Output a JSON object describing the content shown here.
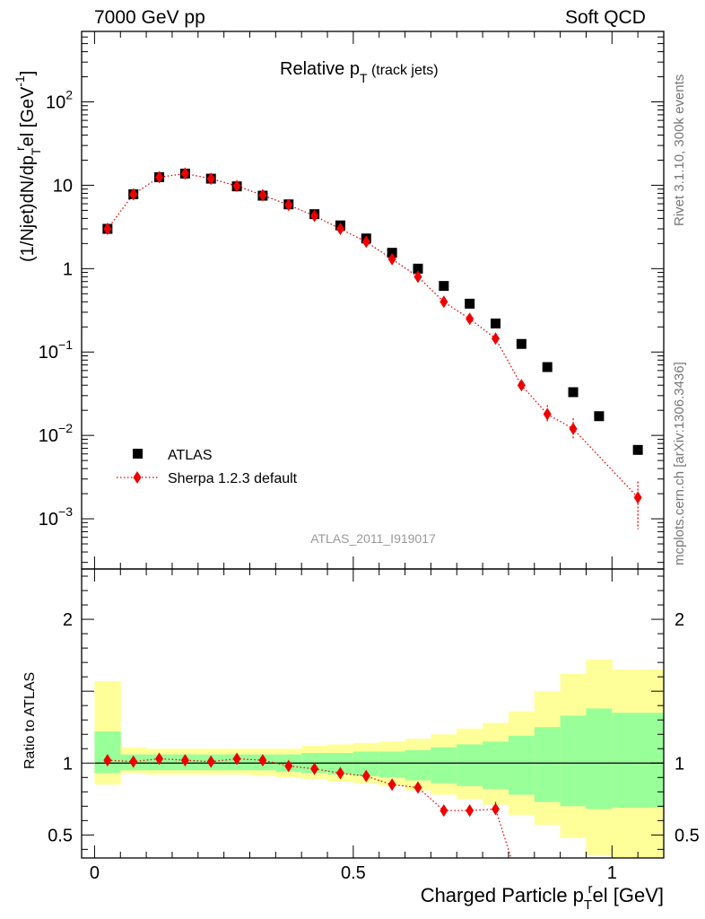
{
  "header": {
    "left": "7000 GeV pp",
    "right": "Soft QCD"
  },
  "side_labels": {
    "rivet": "Rivet 3.1.10,  300k events",
    "mcplots": "mcplots.cern.ch [arXiv:1306.3436]"
  },
  "chart_data": [
    {
      "type": "scatter",
      "title": "Relative p_T (track jets)",
      "title_main": "Relative p",
      "title_sub": "T",
      "title_extra": "(track jets)",
      "ylabel": "(1/Njet)dN/dp_T^rel [GeV^-1]",
      "watermark": "ATLAS_2011_I919017",
      "yscale": "log",
      "xlim": [
        -0.025,
        1.1
      ],
      "ylim": [
        0.00025,
        700
      ],
      "ytick_labels": [
        {
          "v": 0.001,
          "base": "10",
          "exp": "−3"
        },
        {
          "v": 0.01,
          "base": "10",
          "exp": "−2"
        },
        {
          "v": 0.1,
          "base": "10",
          "exp": "−1"
        },
        {
          "v": 1,
          "base": "1",
          "exp": ""
        },
        {
          "v": 10,
          "base": "10",
          "exp": ""
        },
        {
          "v": 100,
          "base": "10",
          "exp": "2"
        }
      ],
      "legend_position": "bottom-left",
      "series": [
        {
          "name": "ATLAS",
          "color": "#000000",
          "marker": "square",
          "x": [
            0.025,
            0.075,
            0.125,
            0.175,
            0.225,
            0.275,
            0.325,
            0.375,
            0.425,
            0.475,
            0.525,
            0.575,
            0.625,
            0.675,
            0.725,
            0.775,
            0.825,
            0.875,
            0.925,
            0.975,
            1.05
          ],
          "y": [
            3.0,
            7.8,
            12.5,
            13.8,
            12.0,
            9.7,
            7.5,
            5.9,
            4.5,
            3.3,
            2.3,
            1.55,
            1.0,
            0.62,
            0.38,
            0.22,
            0.125,
            0.066,
            0.033,
            0.017,
            0.0067
          ]
        },
        {
          "name": "Sherpa 1.2.3 default",
          "color": "#ee0000",
          "marker": "diamond",
          "line": "dotted",
          "x": [
            0.025,
            0.075,
            0.125,
            0.175,
            0.225,
            0.275,
            0.325,
            0.375,
            0.425,
            0.475,
            0.525,
            0.575,
            0.625,
            0.675,
            0.725,
            0.775,
            0.825,
            0.875,
            0.925,
            1.05
          ],
          "y": [
            3.0,
            7.8,
            12.5,
            13.8,
            12.0,
            9.8,
            7.6,
            5.8,
            4.3,
            3.0,
            2.1,
            1.3,
            0.8,
            0.4,
            0.25,
            0.145,
            0.04,
            0.018,
            0.012,
            0.0018
          ],
          "err_low": [
            0.1,
            0.2,
            0.3,
            0.3,
            0.3,
            0.2,
            0.2,
            0.1,
            0.1,
            0.1,
            0.05,
            0.05,
            0.03,
            0.02,
            0.015,
            0.01,
            0.005,
            0.004,
            0.003,
            0.00105
          ],
          "err_high": [
            0.1,
            0.2,
            0.3,
            0.3,
            0.3,
            0.2,
            0.2,
            0.1,
            0.1,
            0.1,
            0.05,
            0.05,
            0.03,
            0.02,
            0.015,
            0.01,
            0.006,
            0.005,
            0.004,
            0.001
          ]
        }
      ]
    },
    {
      "type": "scatter",
      "ylabel": "Ratio to ATLAS",
      "xlabel": "Charged Particle p_T^rel [GeV]",
      "xlabel_main": "Charged Particle p",
      "xlabel_sub": "T",
      "xlabel_sup": "r",
      "xlabel_tail": "el [GeV]",
      "xlim": [
        -0.025,
        1.1
      ],
      "ylim": [
        0.34,
        2.35
      ],
      "xtick_labels": [
        {
          "v": 0,
          "label": "0"
        },
        {
          "v": 0.5,
          "label": "0.5"
        },
        {
          "v": 1,
          "label": "1"
        }
      ],
      "ytick_labels": [
        {
          "v": 0.5,
          "label": "0.5"
        },
        {
          "v": 1,
          "label": "1"
        },
        {
          "v": 2,
          "label": "2"
        }
      ],
      "bands": {
        "edges": [
          0,
          0.05,
          0.1,
          0.15,
          0.2,
          0.25,
          0.3,
          0.35,
          0.4,
          0.45,
          0.5,
          0.55,
          0.6,
          0.65,
          0.7,
          0.75,
          0.8,
          0.85,
          0.9,
          0.95,
          1.0,
          1.1
        ],
        "yellow_high": [
          1.57,
          1.11,
          1.1,
          1.1,
          1.1,
          1.1,
          1.1,
          1.1,
          1.12,
          1.13,
          1.14,
          1.15,
          1.17,
          1.2,
          1.24,
          1.28,
          1.36,
          1.5,
          1.62,
          1.72,
          1.65
        ],
        "yellow_low": [
          0.85,
          0.93,
          0.92,
          0.92,
          0.92,
          0.92,
          0.91,
          0.9,
          0.89,
          0.87,
          0.86,
          0.84,
          0.81,
          0.78,
          0.75,
          0.71,
          0.64,
          0.57,
          0.48,
          0.36,
          0.3
        ],
        "green_high": [
          1.22,
          1.06,
          1.06,
          1.06,
          1.06,
          1.06,
          1.06,
          1.06,
          1.07,
          1.07,
          1.08,
          1.08,
          1.09,
          1.11,
          1.13,
          1.15,
          1.19,
          1.25,
          1.33,
          1.38,
          1.35
        ],
        "green_low": [
          0.93,
          0.95,
          0.95,
          0.95,
          0.95,
          0.95,
          0.95,
          0.94,
          0.93,
          0.92,
          0.91,
          0.9,
          0.88,
          0.86,
          0.84,
          0.82,
          0.78,
          0.73,
          0.7,
          0.68,
          0.69
        ]
      },
      "series": [
        {
          "name": "Sherpa 1.2.3 default",
          "color": "#ee0000",
          "marker": "diamond",
          "line": "dotted",
          "x": [
            0.025,
            0.075,
            0.125,
            0.175,
            0.225,
            0.275,
            0.325,
            0.375,
            0.425,
            0.475,
            0.525,
            0.575,
            0.625,
            0.675,
            0.725,
            0.775
          ],
          "y": [
            1.02,
            1.01,
            1.03,
            1.02,
            1.01,
            1.03,
            1.02,
            0.98,
            0.96,
            0.93,
            0.91,
            0.85,
            0.83,
            0.67,
            0.67,
            0.68
          ],
          "err": [
            0.02,
            0.02,
            0.02,
            0.02,
            0.02,
            0.02,
            0.02,
            0.02,
            0.02,
            0.02,
            0.02,
            0.02,
            0.03,
            0.03,
            0.04,
            0.05
          ],
          "trail_to": {
            "x": 0.805,
            "y": 0.34
          }
        }
      ],
      "reference_line": 1
    }
  ]
}
